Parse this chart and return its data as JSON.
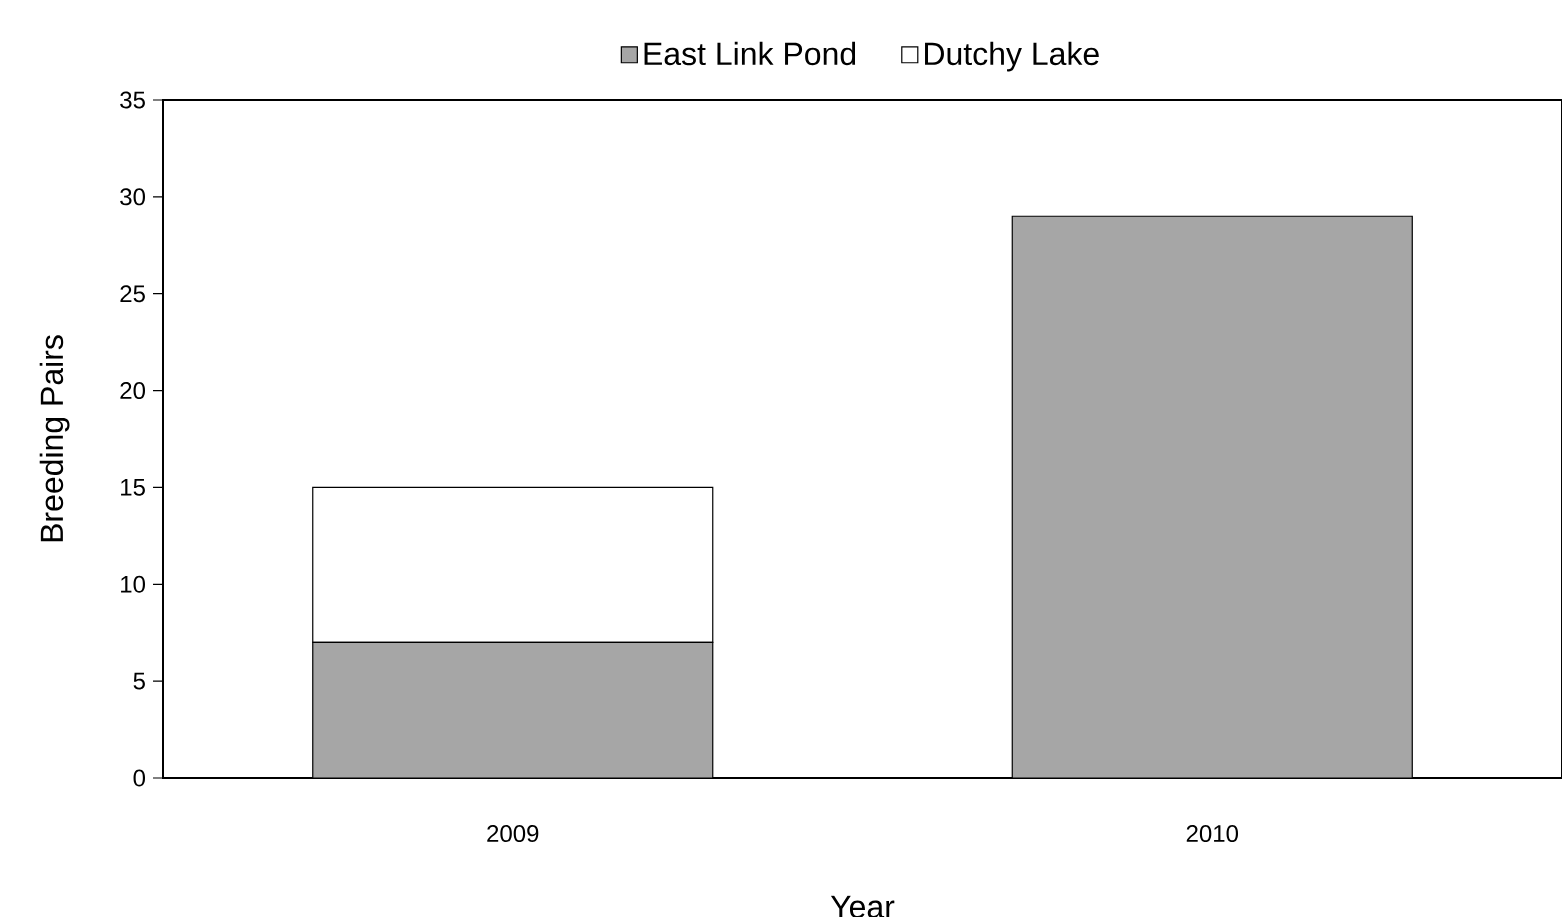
{
  "chart_data": {
    "type": "bar",
    "stacked": true,
    "xlabel": "Year",
    "ylabel": "Breeding  Pairs",
    "categories": [
      "2009",
      "2010"
    ],
    "series": [
      {
        "name": "East Link Pond",
        "color": "#a6a6a6",
        "values": [
          7,
          29
        ]
      },
      {
        "name": "Dutchy Lake",
        "color": "#ffffff",
        "values": [
          8,
          0
        ]
      }
    ],
    "ylim": [
      0,
      35
    ],
    "yticks": [
      0,
      5,
      10,
      15,
      20,
      25,
      30,
      35
    ],
    "legend": "top"
  }
}
